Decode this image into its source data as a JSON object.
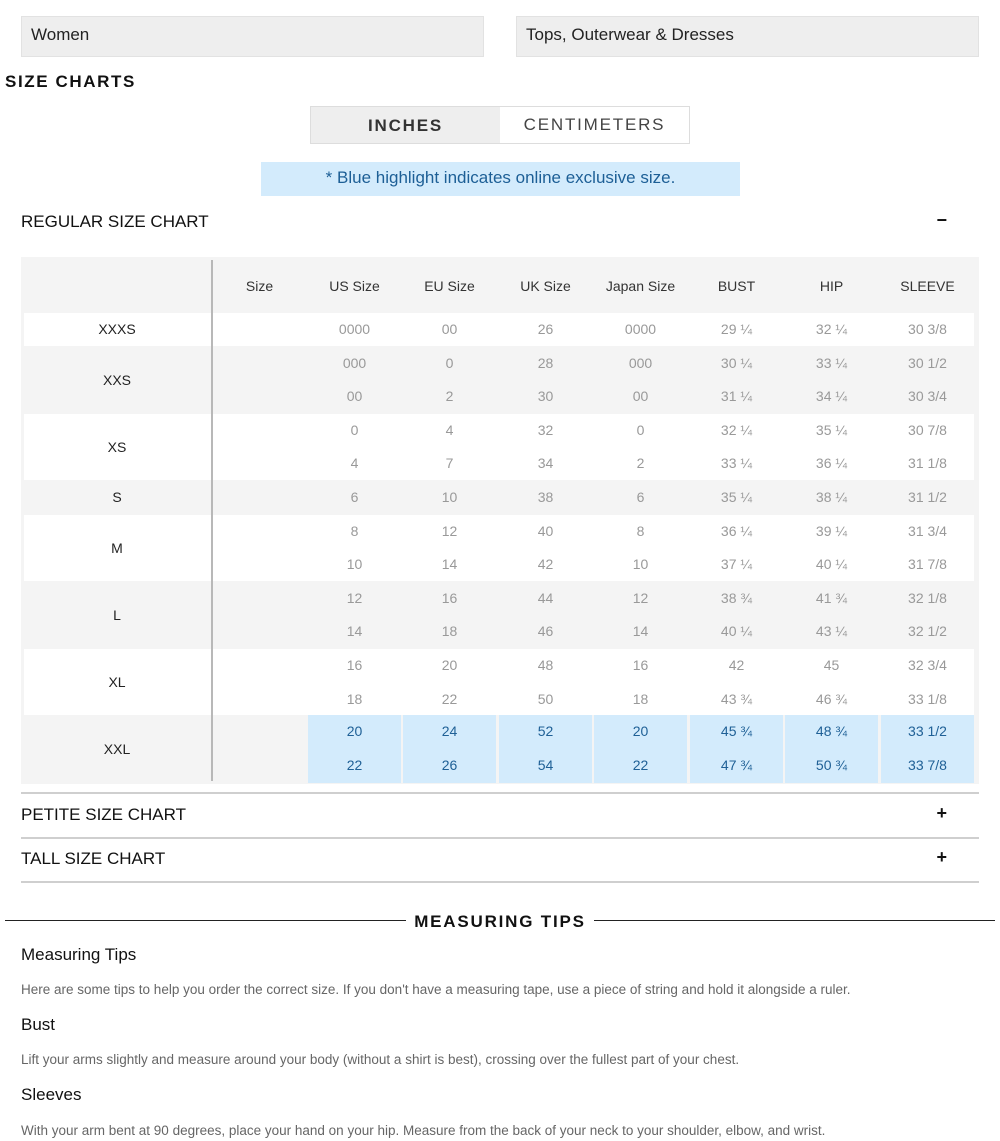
{
  "selectors": {
    "department": "Women",
    "category": "Tops, Outerwear & Dresses"
  },
  "page_title": "SIZE CHARTS",
  "units": {
    "inches": "INCHES",
    "centimeters": "CENTIMETERS",
    "selected": "INCHES"
  },
  "notice": "* Blue highlight indicates online exclusive size.",
  "regular": {
    "title": "REGULAR SIZE CHART",
    "toggle": "−",
    "headers": [
      "Size",
      "US Size",
      "EU Size",
      "UK Size",
      "Japan Size",
      "BUST",
      "HIP",
      "SLEEVE"
    ],
    "groups": [
      {
        "label": "XXXS",
        "rows": [
          [
            "0000",
            "00",
            "26",
            "0000",
            "29 ¼",
            "32 ¼",
            "30 3/8"
          ]
        ]
      },
      {
        "label": "XXS",
        "rows": [
          [
            "000",
            "0",
            "28",
            "000",
            "30 ¼",
            "33 ¼",
            "30 1/2"
          ],
          [
            "00",
            "2",
            "30",
            "00",
            "31 ¼",
            "34 ¼",
            "30 3/4"
          ]
        ]
      },
      {
        "label": "XS",
        "rows": [
          [
            "0",
            "4",
            "32",
            "0",
            "32 ¼",
            "35 ¼",
            "30 7/8"
          ],
          [
            "4",
            "7",
            "34",
            "2",
            "33 ¼",
            "36 ¼",
            "31 1/8"
          ]
        ]
      },
      {
        "label": "S",
        "rows": [
          [
            "6",
            "10",
            "38",
            "6",
            "35 ¼",
            "38 ¼",
            "31 1/2"
          ]
        ]
      },
      {
        "label": "M",
        "rows": [
          [
            "8",
            "12",
            "40",
            "8",
            "36 ¼",
            "39 ¼",
            "31 3/4"
          ],
          [
            "10",
            "14",
            "42",
            "10",
            "37 ¼",
            "40 ¼",
            "31 7/8"
          ]
        ]
      },
      {
        "label": "L",
        "rows": [
          [
            "12",
            "16",
            "44",
            "12",
            "38 ¾",
            "41 ¾",
            "32 1/8"
          ],
          [
            "14",
            "18",
            "46",
            "14",
            "40 ¼",
            "43 ¼",
            "32 1/2"
          ]
        ]
      },
      {
        "label": "XL",
        "rows": [
          [
            "16",
            "20",
            "48",
            "16",
            "42",
            "45",
            "32 3/4"
          ],
          [
            "18",
            "22",
            "50",
            "18",
            "43 ¾",
            "46 ¾",
            "33 1/8"
          ]
        ]
      },
      {
        "label": "XXL",
        "online_exclusive": true,
        "rows": [
          [
            "20",
            "24",
            "52",
            "20",
            "45 ¾",
            "48 ¾",
            "33 1/2"
          ],
          [
            "22",
            "26",
            "54",
            "22",
            "47 ¾",
            "50 ¾",
            "33 7/8"
          ]
        ]
      }
    ]
  },
  "petite": {
    "title": "PETITE SIZE CHART",
    "toggle": "+"
  },
  "tall": {
    "title": "TALL SIZE CHART",
    "toggle": "+"
  },
  "tips": {
    "section_title": "MEASURING TIPS",
    "items": [
      {
        "heading": "Measuring Tips",
        "text": "Here are some tips to help you order the correct size. If you don't have a measuring tape, use a piece of string and hold it alongside a ruler."
      },
      {
        "heading": "Bust",
        "text": "Lift your arms slightly and measure around your body (without a shirt is best), crossing over the fullest part of your chest."
      },
      {
        "heading": "Sleeves",
        "text": "With your arm bent at 90 degrees, place your hand on your hip. Measure from the back of your neck to your shoulder, elbow, and wrist."
      }
    ]
  },
  "colors": {
    "highlight_bg": "#d3ebfc",
    "highlight_text": "#1f6096",
    "panel_bg": "#eeeeee"
  }
}
